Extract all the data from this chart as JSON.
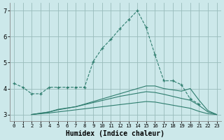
{
  "xlabel": "Humidex (Indice chaleur)",
  "bg_color": "#cce8ea",
  "grid_color": "#99bbbb",
  "line_color": "#2e7d6e",
  "xlim": [
    -0.5,
    23.5
  ],
  "ylim": [
    2.75,
    7.3
  ],
  "xtick_vals": [
    0,
    1,
    2,
    3,
    4,
    5,
    6,
    7,
    8,
    9,
    10,
    11,
    12,
    13,
    14,
    15,
    16,
    17,
    18,
    19,
    20,
    21,
    22,
    23
  ],
  "ytick_vals": [
    3,
    4,
    5,
    6,
    7
  ],
  "line1_x": [
    0,
    1,
    2,
    3,
    4,
    5,
    6,
    7,
    8,
    9,
    10,
    11,
    12,
    13,
    14,
    15,
    16,
    17,
    18,
    19,
    20,
    21
  ],
  "line1_y": [
    4.2,
    4.05,
    3.8,
    3.8,
    4.05,
    4.05,
    4.05,
    4.05,
    4.05,
    5.05,
    5.55,
    5.9,
    6.3,
    6.65,
    7.0,
    6.35,
    5.3,
    4.3,
    4.3,
    4.15,
    3.6,
    3.4
  ],
  "line2_x": [
    2,
    3,
    4,
    5,
    6,
    7,
    8,
    9,
    10,
    11,
    12,
    13,
    14,
    15,
    16,
    17,
    18,
    19,
    20,
    21,
    22,
    23
  ],
  "line2_y": [
    3.0,
    3.05,
    3.1,
    3.2,
    3.25,
    3.3,
    3.4,
    3.5,
    3.6,
    3.7,
    3.8,
    3.9,
    4.0,
    4.1,
    4.1,
    4.0,
    3.95,
    3.9,
    4.0,
    3.55,
    3.15,
    3.0
  ],
  "line3_x": [
    2,
    3,
    4,
    5,
    6,
    7,
    8,
    9,
    10,
    11,
    12,
    13,
    14,
    15,
    16,
    17,
    18,
    19,
    20,
    21,
    22,
    23
  ],
  "line3_y": [
    3.0,
    3.05,
    3.1,
    3.18,
    3.24,
    3.3,
    3.38,
    3.46,
    3.54,
    3.62,
    3.7,
    3.76,
    3.82,
    3.88,
    3.85,
    3.78,
    3.7,
    3.62,
    3.55,
    3.35,
    3.1,
    3.0
  ],
  "line4_x": [
    2,
    3,
    4,
    5,
    6,
    7,
    8,
    9,
    10,
    11,
    12,
    13,
    14,
    15,
    16,
    17,
    18,
    19,
    20,
    21,
    22,
    23
  ],
  "line4_y": [
    3.0,
    3.03,
    3.06,
    3.1,
    3.14,
    3.18,
    3.22,
    3.26,
    3.3,
    3.34,
    3.38,
    3.42,
    3.46,
    3.5,
    3.48,
    3.42,
    3.36,
    3.3,
    3.24,
    3.12,
    3.03,
    3.0
  ]
}
